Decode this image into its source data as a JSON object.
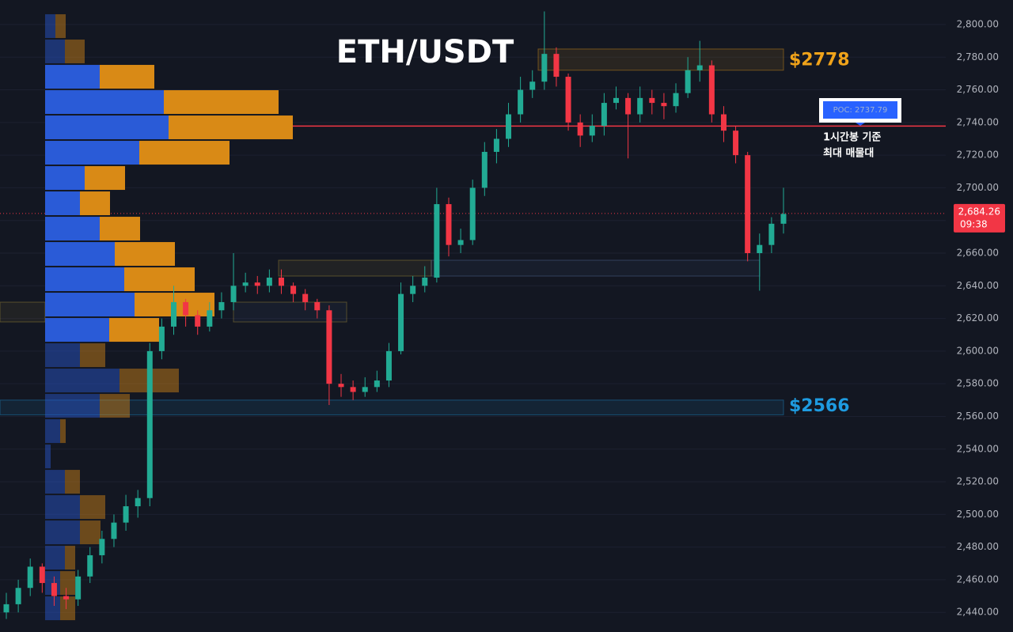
{
  "chart_data": {
    "type": "candlestick",
    "title": "ETH/USDT",
    "ylim": [
      2428,
      2815
    ],
    "yticks": [
      {
        "value": 2440,
        "label": "2,440.00"
      },
      {
        "value": 2460,
        "label": "2,460.00"
      },
      {
        "value": 2480,
        "label": "2,480.00"
      },
      {
        "value": 2500,
        "label": "2,500.00"
      },
      {
        "value": 2520,
        "label": "2,520.00"
      },
      {
        "value": 2540,
        "label": "2,540.00"
      },
      {
        "value": 2560,
        "label": "2,560.00"
      },
      {
        "value": 2580,
        "label": "2,580.00"
      },
      {
        "value": 2600,
        "label": "2,600.00"
      },
      {
        "value": 2620,
        "label": "2,620.00"
      },
      {
        "value": 2640,
        "label": "2,640.00"
      },
      {
        "value": 2660,
        "label": "2,660.00"
      },
      {
        "value": 2680,
        "label": "2,680.00"
      },
      {
        "value": 2700,
        "label": "2,700.00"
      },
      {
        "value": 2720,
        "label": "2,720.00"
      },
      {
        "value": 2740,
        "label": "2,740.00"
      },
      {
        "value": 2760,
        "label": "2,760.00"
      },
      {
        "value": 2780,
        "label": "2,780.00"
      },
      {
        "value": 2800,
        "label": "2,800.00"
      }
    ],
    "grid": true,
    "up_color": "#22ab94",
    "down_color": "#f23645",
    "open": [
      2440,
      2445,
      2455,
      2468,
      2458,
      2450,
      2448,
      2462,
      2475,
      2485,
      2495,
      2505,
      2510,
      2600,
      2615,
      2630,
      2622,
      2615,
      2625,
      2630,
      2640,
      2642,
      2640,
      2645,
      2640,
      2635,
      2630,
      2625,
      2580,
      2578,
      2575,
      2578,
      2582,
      2600,
      2635,
      2640,
      2645,
      2690,
      2665,
      2668,
      2700,
      2722,
      2730,
      2745,
      2760,
      2765,
      2782,
      2768,
      2740,
      2732,
      2738,
      2752,
      2755,
      2745,
      2755,
      2752,
      2750,
      2758,
      2772,
      2775,
      2745,
      2735,
      2720,
      2660,
      2665,
      2678
    ],
    "high": [
      2452,
      2460,
      2473,
      2470,
      2462,
      2455,
      2466,
      2480,
      2490,
      2500,
      2512,
      2515,
      2605,
      2620,
      2640,
      2632,
      2625,
      2630,
      2636,
      2660,
      2648,
      2646,
      2650,
      2650,
      2642,
      2638,
      2632,
      2628,
      2586,
      2582,
      2584,
      2588,
      2605,
      2642,
      2646,
      2652,
      2700,
      2694,
      2675,
      2705,
      2728,
      2736,
      2752,
      2768,
      2772,
      2808,
      2786,
      2770,
      2745,
      2745,
      2758,
      2762,
      2758,
      2762,
      2760,
      2758,
      2764,
      2780,
      2790,
      2778,
      2750,
      2738,
      2722,
      2672,
      2682,
      2700
    ],
    "low": [
      2436,
      2440,
      2450,
      2452,
      2444,
      2442,
      2444,
      2458,
      2470,
      2480,
      2490,
      2498,
      2505,
      2595,
      2610,
      2615,
      2610,
      2612,
      2620,
      2625,
      2636,
      2635,
      2636,
      2635,
      2630,
      2625,
      2620,
      2567,
      2572,
      2570,
      2572,
      2575,
      2578,
      2598,
      2630,
      2636,
      2642,
      2658,
      2660,
      2665,
      2695,
      2715,
      2725,
      2740,
      2755,
      2760,
      2762,
      2735,
      2725,
      2728,
      2732,
      2748,
      2718,
      2740,
      2745,
      2742,
      2746,
      2755,
      2765,
      2740,
      2728,
      2715,
      2655,
      2637,
      2660,
      2672
    ],
    "close": [
      2445,
      2455,
      2468,
      2458,
      2450,
      2448,
      2462,
      2475,
      2485,
      2495,
      2505,
      2510,
      2600,
      2615,
      2630,
      2622,
      2615,
      2625,
      2630,
      2640,
      2642,
      2640,
      2645,
      2640,
      2635,
      2630,
      2625,
      2580,
      2578,
      2575,
      2578,
      2582,
      2600,
      2635,
      2640,
      2645,
      2690,
      2665,
      2668,
      2700,
      2722,
      2730,
      2745,
      2760,
      2765,
      2782,
      2768,
      2740,
      2732,
      2738,
      2752,
      2755,
      2745,
      2755,
      2752,
      2750,
      2758,
      2772,
      2775,
      2745,
      2735,
      2720,
      2660,
      2665,
      2678,
      2684
    ],
    "last_price": {
      "value": 2684.26,
      "label": "2,684.26"
    },
    "countdown": "09:38",
    "volume_profile": {
      "price_levels": [
        2799,
        2783.5,
        2768,
        2752.5,
        2737,
        2721.5,
        2706,
        2690.5,
        2675,
        2659.5,
        2644,
        2628.5,
        2613,
        2597.5,
        2582,
        2566.5,
        2551,
        2535.5,
        2520,
        2504.5,
        2489,
        2473.5,
        2458,
        2442.5
      ],
      "buy": [
        13,
        25,
        69,
        150,
        156,
        119,
        50,
        44,
        69,
        88,
        100,
        113,
        81,
        44,
        94,
        69,
        19,
        7,
        25,
        44,
        44,
        25,
        19,
        19
      ],
      "sell": [
        13,
        25,
        69,
        145,
        157,
        114,
        51,
        38,
        51,
        76,
        89,
        101,
        63,
        32,
        75,
        38,
        7,
        0,
        19,
        32,
        26,
        13,
        19,
        19
      ],
      "buy_color": "#2a5bd7",
      "sell_color": "#d98a16",
      "value_area": [
        2605,
        2775
      ]
    },
    "poc": {
      "value": 2737.79,
      "label": "POC: 2737.79"
    },
    "poc_note": [
      "1시간봉 기준",
      "최대 매물대"
    ],
    "zones": [
      {
        "low": 2772,
        "high": 2785,
        "label": "$2778",
        "value": 2778,
        "color": "#f0a31a"
      },
      {
        "low": 2561,
        "high": 2570,
        "label": "$2566",
        "value": 2566,
        "color": "#1e9be0"
      }
    ]
  }
}
